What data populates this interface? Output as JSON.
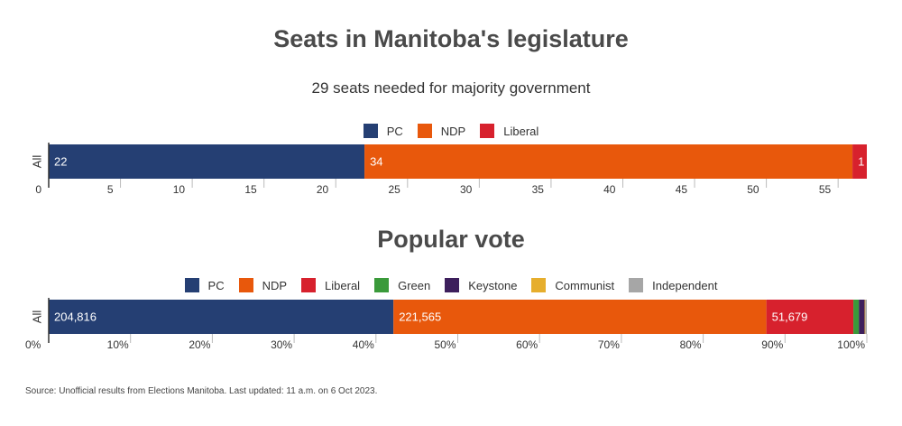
{
  "colors": {
    "PC": "#253f73",
    "NDP": "#e8580c",
    "Liberal": "#d7212d",
    "Green": "#3a9a3a",
    "Keystone": "#3d1f5c",
    "Communist": "#e6ae2d",
    "Independent": "#a6a6a6"
  },
  "seats_title": "Seats in Manitoba's legislature",
  "seats_subtitle": "29 seats needed for majority government",
  "vote_title": "Popular vote",
  "source": "Source: Unofficial results from Elections Manitoba. Last updated: 11 a.m. on 6 Oct 2023.",
  "chart_data": [
    {
      "type": "bar",
      "orientation": "horizontal",
      "stacked": true,
      "title": "Seats in Manitoba's legislature",
      "subtitle": "29 seats needed for majority government",
      "categories": [
        "All"
      ],
      "series": [
        {
          "name": "PC",
          "values": [
            22
          ],
          "label": "22"
        },
        {
          "name": "NDP",
          "values": [
            34
          ],
          "label": "34"
        },
        {
          "name": "Liberal",
          "values": [
            1
          ],
          "label": "1"
        }
      ],
      "xlim": [
        0,
        57
      ],
      "xticks": [
        0,
        5,
        10,
        15,
        20,
        25,
        30,
        35,
        40,
        45,
        50,
        55
      ],
      "xtick_labels": [
        "0",
        "5",
        "10",
        "15",
        "20",
        "25",
        "30",
        "35",
        "40",
        "45",
        "50",
        "55"
      ],
      "legend": "top-center"
    },
    {
      "type": "bar",
      "orientation": "horizontal",
      "stacked": true,
      "normalized": true,
      "title": "Popular vote",
      "categories": [
        "All"
      ],
      "series": [
        {
          "name": "PC",
          "values": [
            204816
          ],
          "label": "204,816"
        },
        {
          "name": "NDP",
          "values": [
            221565
          ],
          "label": "221,565"
        },
        {
          "name": "Liberal",
          "values": [
            51679
          ],
          "label": "51,679"
        },
        {
          "name": "Green",
          "values": [
            3300
          ],
          "label": ""
        },
        {
          "name": "Keystone",
          "values": [
            3400
          ],
          "label": ""
        },
        {
          "name": "Communist",
          "values": [
            400
          ],
          "label": ""
        },
        {
          "name": "Independent",
          "values": [
            900
          ],
          "label": ""
        }
      ],
      "xlim": [
        0,
        100
      ],
      "xticks": [
        0,
        10,
        20,
        30,
        40,
        50,
        60,
        70,
        80,
        90,
        100
      ],
      "xtick_labels": [
        "0%",
        "10%",
        "20%",
        "30%",
        "40%",
        "50%",
        "60%",
        "70%",
        "80%",
        "90%",
        "100%"
      ],
      "legend": "top-center"
    }
  ]
}
